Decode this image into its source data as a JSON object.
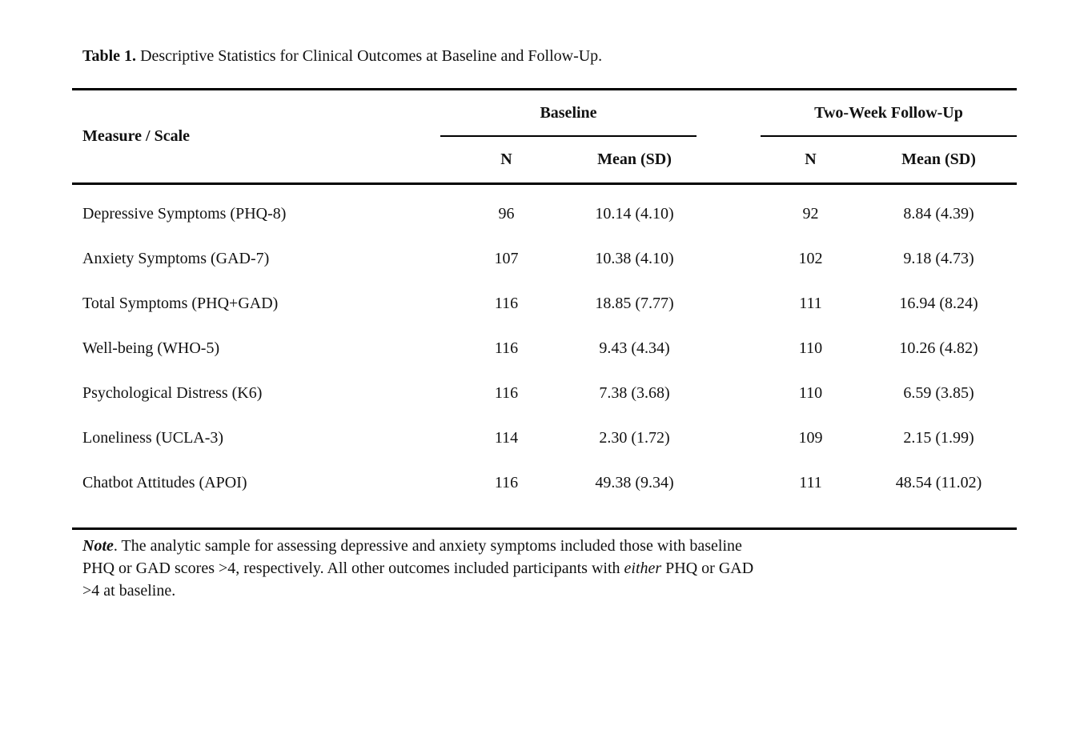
{
  "colors": {
    "background": "#ffffff",
    "text": "#111111",
    "rule": "#000000"
  },
  "title": {
    "label": "Table 1.",
    "text": " Descriptive Statistics for Clinical Outcomes at Baseline and Follow-Up."
  },
  "table": {
    "measure_header": "Measure / Scale",
    "group_headers": [
      {
        "label": "Baseline",
        "n_label": "N",
        "mean_label": "Mean (SD)"
      },
      {
        "label": "Two-Week Follow-Up",
        "n_label": "N",
        "mean_label": "Mean (SD)"
      }
    ],
    "rows": [
      {
        "measure": "Depressive Symptoms (PHQ-8)",
        "baseline_n": "96",
        "baseline_mean_sd": "10.14 (4.10)",
        "followup_n": "92",
        "followup_mean_sd": "8.84 (4.39)"
      },
      {
        "measure": "Anxiety Symptoms (GAD-7)",
        "baseline_n": "107",
        "baseline_mean_sd": "10.38 (4.10)",
        "followup_n": "102",
        "followup_mean_sd": "9.18 (4.73)"
      },
      {
        "measure": "Total Symptoms (PHQ+GAD)",
        "baseline_n": "116",
        "baseline_mean_sd": "18.85 (7.77)",
        "followup_n": "111",
        "followup_mean_sd": "16.94 (8.24)"
      },
      {
        "measure": "Well-being (WHO-5)",
        "baseline_n": "116",
        "baseline_mean_sd": "9.43 (4.34)",
        "followup_n": "110",
        "followup_mean_sd": "10.26 (4.82)"
      },
      {
        "measure": "Psychological Distress (K6)",
        "baseline_n": "116",
        "baseline_mean_sd": "7.38 (3.68)",
        "followup_n": "110",
        "followup_mean_sd": "6.59 (3.85)"
      },
      {
        "measure": "Loneliness (UCLA-3)",
        "baseline_n": "114",
        "baseline_mean_sd": "2.30 (1.72)",
        "followup_n": "109",
        "followup_mean_sd": "2.15 (1.99)"
      },
      {
        "measure": "Chatbot Attitudes (APOI)",
        "baseline_n": "116",
        "baseline_mean_sd": "49.38 (9.34)",
        "followup_n": "111",
        "followup_mean_sd": "48.54 (11.02)"
      }
    ]
  },
  "note": {
    "label": "Note",
    "line1": ". The analytic sample for assessing depressive and anxiety symptoms included those with baseline",
    "line2_pre": "PHQ or GAD scores >4, respectively. All other outcomes included participants with ",
    "line2_italic": "either",
    "line2_post": " PHQ or GAD",
    "line3": ">4 at baseline."
  }
}
